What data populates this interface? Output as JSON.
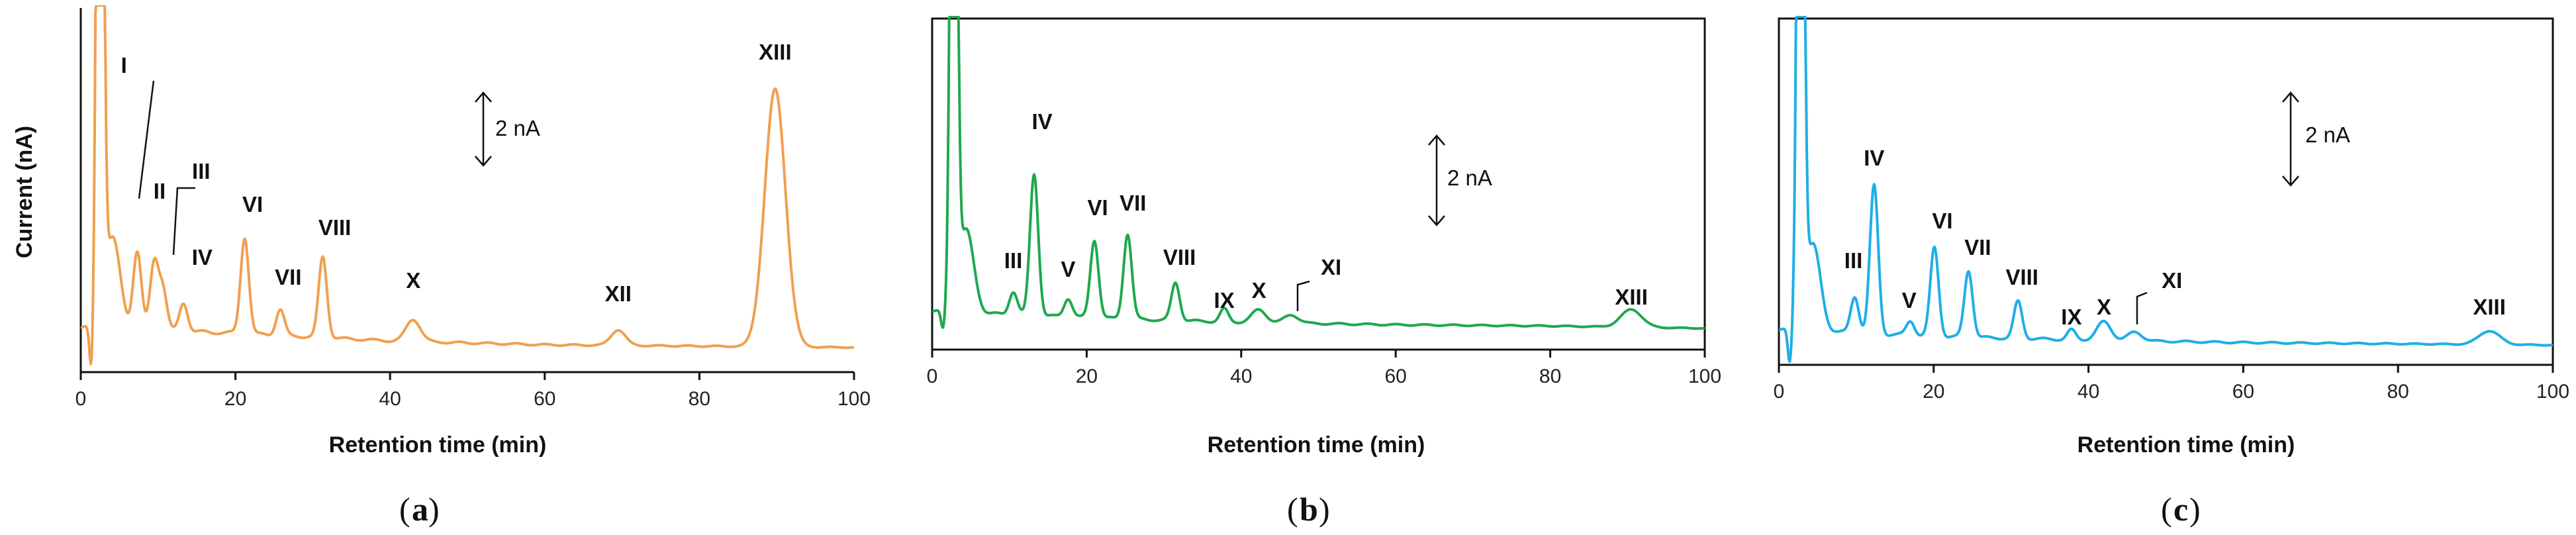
{
  "chart_data": [
    {
      "type": "line",
      "id": "a",
      "panel_label": "a",
      "color": "#F0A050",
      "xlabel": "Retention time (min)",
      "ylabel": "Current (nA)",
      "xlim": [
        0,
        100
      ],
      "ylim": [
        0,
        14
      ],
      "x_ticks": [
        0,
        20,
        40,
        60,
        80,
        100
      ],
      "x_tick_labels": [
        "0",
        "20",
        "40",
        "60",
        "80",
        "100"
      ],
      "scale_bar": {
        "label": "2 nA",
        "value_nA": 2
      },
      "baseline": [
        [
          0,
          1.7
        ],
        [
          20,
          1.5
        ],
        [
          40,
          1.2
        ],
        [
          60,
          1.05
        ],
        [
          80,
          1.0
        ],
        [
          100,
          0.95
        ]
      ],
      "solvent_front": {
        "x": 2.5,
        "dip": -0.3
      },
      "peaks": [
        {
          "label": "I",
          "rt": 7.3,
          "height": 3.0
        },
        {
          "label": "II",
          "rt": 9.5,
          "height": 2.6
        },
        {
          "label": "III",
          "rt": 10.6,
          "height": 1.6
        },
        {
          "label": "IV",
          "rt": 13.3,
          "height": 1.1
        },
        {
          "label": "VI",
          "rt": 21.2,
          "height": 3.7
        },
        {
          "label": "VII",
          "rt": 25.8,
          "height": 1.0
        },
        {
          "label": "VIII",
          "rt": 31.3,
          "height": 3.1
        },
        {
          "label": "X",
          "rt": 43.0,
          "height": 0.85
        },
        {
          "label": "XII",
          "rt": 69.5,
          "height": 0.6
        },
        {
          "label": "XIII",
          "rt": 89.8,
          "height": 9.9
        }
      ]
    },
    {
      "type": "line",
      "id": "b",
      "panel_label": "b",
      "color": "#1FA84F",
      "xlabel": "Retention time (min)",
      "ylabel": "",
      "xlim": [
        0,
        100
      ],
      "ylim": [
        0,
        14
      ],
      "x_ticks": [
        0,
        20,
        40,
        60,
        80,
        100
      ],
      "x_tick_labels": [
        "0",
        "20",
        "40",
        "60",
        "80",
        "100"
      ],
      "scale_bar": {
        "label": "2 nA",
        "value_nA": 2
      },
      "baseline": [
        [
          0,
          1.6
        ],
        [
          20,
          1.35
        ],
        [
          40,
          1.15
        ],
        [
          60,
          1.05
        ],
        [
          80,
          1.0
        ],
        [
          100,
          0.9
        ]
      ],
      "solvent_front": {
        "x": 2.8,
        "dip": 0.9
      },
      "peaks": [
        {
          "label": "III",
          "rt": 10.5,
          "height": 1.0
        },
        {
          "label": "IV",
          "rt": 13.2,
          "height": 6.0
        },
        {
          "label": "V",
          "rt": 17.6,
          "height": 0.8
        },
        {
          "label": "VI",
          "rt": 21.0,
          "height": 3.3
        },
        {
          "label": "VII",
          "rt": 25.3,
          "height": 3.6
        },
        {
          "label": "VIII",
          "rt": 31.5,
          "height": 1.6
        },
        {
          "label": "IX",
          "rt": 37.8,
          "height": 0.55
        },
        {
          "label": "X",
          "rt": 42.3,
          "height": 0.55
        },
        {
          "label": "XI",
          "rt": 46.5,
          "height": 0.35
        },
        {
          "label": "XIII",
          "rt": 90.5,
          "height": 0.75
        }
      ]
    },
    {
      "type": "line",
      "id": "c",
      "panel_label": "c",
      "color": "#1EAEE6",
      "xlabel": "Retention time (min)",
      "ylabel": "",
      "xlim": [
        0,
        100
      ],
      "ylim": [
        0,
        14
      ],
      "x_ticks": [
        0,
        20,
        40,
        60,
        80,
        100
      ],
      "x_tick_labels": [
        "0",
        "20",
        "40",
        "60",
        "80",
        "100"
      ],
      "scale_bar": {
        "label": "2 nA",
        "value_nA": 2
      },
      "baseline": [
        [
          0,
          1.4
        ],
        [
          20,
          1.15
        ],
        [
          40,
          1.0
        ],
        [
          60,
          0.9
        ],
        [
          80,
          0.85
        ],
        [
          100,
          0.8
        ]
      ],
      "solvent_front": {
        "x": 2.8,
        "dip": 0.3
      },
      "peaks": [
        {
          "label": "III",
          "rt": 9.8,
          "height": 1.5
        },
        {
          "label": "IV",
          "rt": 12.3,
          "height": 6.0
        },
        {
          "label": "V",
          "rt": 17.0,
          "height": 0.6
        },
        {
          "label": "VI",
          "rt": 20.1,
          "height": 3.6
        },
        {
          "label": "VII",
          "rt": 24.5,
          "height": 2.7
        },
        {
          "label": "VIII",
          "rt": 30.9,
          "height": 1.5
        },
        {
          "label": "IX",
          "rt": 37.8,
          "height": 0.4
        },
        {
          "label": "X",
          "rt": 42.0,
          "height": 0.75
        },
        {
          "label": "XI",
          "rt": 46.0,
          "height": 0.35
        },
        {
          "label": "XIII",
          "rt": 91.8,
          "height": 0.55
        }
      ]
    }
  ]
}
